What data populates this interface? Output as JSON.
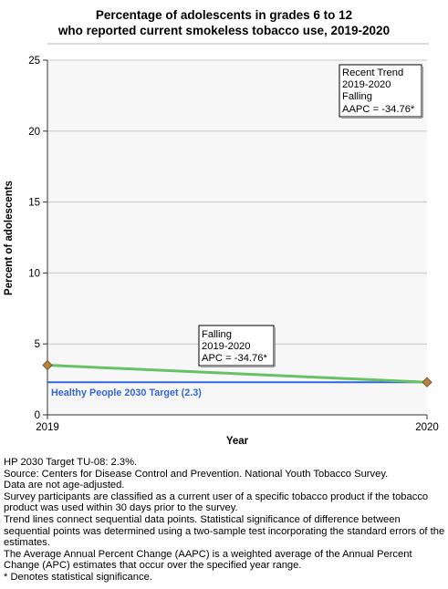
{
  "chart_data": {
    "type": "line",
    "title_lines": [
      "Percentage of adolescents in grades 6 to 12",
      "who reported current smokeless tobacco use, 2019-2020"
    ],
    "xlabel": "Year",
    "ylabel": "Percent of adolescents",
    "x": [
      "2019",
      "2020"
    ],
    "ylim": [
      0,
      25
    ],
    "yticks": [
      "0",
      "5",
      "10",
      "15",
      "20",
      "25"
    ],
    "grid": true,
    "series": [
      {
        "values": [
          3.5,
          2.3
        ],
        "color": "#66c266",
        "marker_color": "#b5813f"
      }
    ],
    "target": {
      "value": 2.3,
      "label": "Healthy People 2030 Target (2.3)",
      "color": "#3366dd"
    },
    "annotations": {
      "trend_box": [
        "Recent Trend",
        "2019-2020",
        "Falling",
        "AAPC = -34.76*"
      ],
      "segment_box": [
        "Falling",
        "2019-2020",
        "APC = -34.76*"
      ]
    }
  },
  "footnotes": [
    "HP 2030 Target TU-08: 2.3%.",
    "Source: Centers for Disease Control and Prevention. National Youth Tobacco Survey.",
    "Data are not age-adjusted.",
    "Survey participants are classified as a current user of a specific tobacco product if the tobacco product was used within 30 days prior to the survey.",
    "Trend lines connect sequential data points. Statistical significance of difference between sequential points was determined using a two-sample test incorporating the standard errors of the estimates.",
    "The Average Annual Percent Change (AAPC) is a weighted average of the Annual Percent Change (APC) estimates that occur over the specified year range.",
    "* Denotes statistical significance."
  ]
}
